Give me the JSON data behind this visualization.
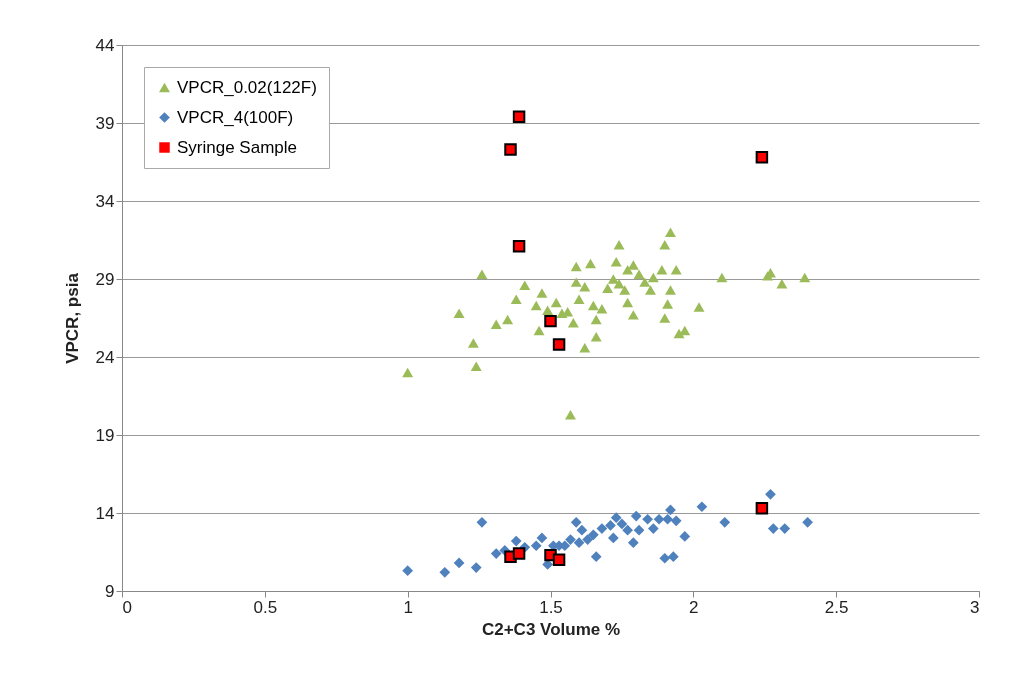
{
  "chart_data": {
    "type": "scatter",
    "xlabel": "C2+C3 Volume %",
    "ylabel": "VPCR, psia",
    "xlim": [
      0,
      3
    ],
    "xticks": [
      0,
      0.5,
      1,
      1.5,
      2,
      2.5,
      3
    ],
    "ylim": [
      9,
      44
    ],
    "yticks": [
      9,
      14,
      19,
      24,
      29,
      34,
      39,
      44
    ],
    "grid": "y",
    "legend": "top left",
    "series": [
      {
        "name": "VPCR_0.02(122F)",
        "color": "#9bbb59",
        "marker": "triangle",
        "x": [
          1.0,
          1.18,
          1.23,
          1.24,
          1.26,
          1.31,
          1.35,
          1.38,
          1.41,
          1.45,
          1.46,
          1.47,
          1.49,
          1.52,
          1.54,
          1.56,
          1.57,
          1.58,
          1.59,
          1.59,
          1.6,
          1.62,
          1.62,
          1.64,
          1.65,
          1.66,
          1.66,
          1.68,
          1.7,
          1.72,
          1.73,
          1.74,
          1.74,
          1.76,
          1.77,
          1.77,
          1.79,
          1.79,
          1.81,
          1.83,
          1.85,
          1.86,
          1.89,
          1.9,
          1.9,
          1.91,
          1.92,
          1.92,
          1.94,
          1.95,
          1.97,
          2.02,
          2.1,
          2.26,
          2.27,
          2.31,
          2.39
        ],
        "values": [
          23.0,
          26.8,
          24.9,
          23.4,
          29.3,
          26.1,
          26.4,
          27.7,
          28.6,
          27.3,
          25.7,
          28.1,
          27.0,
          27.5,
          26.8,
          26.9,
          20.3,
          26.2,
          29.8,
          28.8,
          27.7,
          24.6,
          28.5,
          30.0,
          27.3,
          26.4,
          25.3,
          27.1,
          28.4,
          29.0,
          30.1,
          31.2,
          28.7,
          28.3,
          29.6,
          27.5,
          26.7,
          29.9,
          29.3,
          28.8,
          28.3,
          29.1,
          29.6,
          31.2,
          26.5,
          27.4,
          32.0,
          28.3,
          29.6,
          25.5,
          25.7,
          27.2,
          29.1,
          29.2,
          29.4,
          28.7,
          29.1
        ]
      },
      {
        "name": "VPCR_4(100F)",
        "color": "#4f81bd",
        "marker": "diamond",
        "x": [
          1.0,
          1.13,
          1.18,
          1.24,
          1.26,
          1.31,
          1.34,
          1.38,
          1.41,
          1.45,
          1.47,
          1.49,
          1.51,
          1.53,
          1.55,
          1.57,
          1.59,
          1.6,
          1.61,
          1.63,
          1.65,
          1.66,
          1.68,
          1.71,
          1.72,
          1.73,
          1.75,
          1.77,
          1.79,
          1.8,
          1.81,
          1.84,
          1.86,
          1.88,
          1.9,
          1.91,
          1.92,
          1.93,
          1.94,
          1.97,
          2.03,
          2.11,
          2.27,
          2.28,
          2.32,
          2.4
        ],
        "values": [
          10.3,
          10.2,
          10.8,
          10.5,
          13.4,
          11.4,
          11.6,
          12.2,
          11.8,
          11.9,
          12.4,
          10.7,
          11.9,
          11.9,
          11.9,
          12.3,
          13.4,
          12.1,
          12.9,
          12.3,
          12.6,
          11.2,
          13.0,
          13.2,
          12.4,
          13.7,
          13.3,
          12.9,
          12.1,
          13.8,
          12.9,
          13.6,
          13.0,
          13.6,
          11.1,
          13.6,
          14.2,
          11.2,
          13.5,
          12.5,
          14.4,
          13.4,
          15.2,
          13.0,
          13.0,
          13.4
        ]
      },
      {
        "name": "Syringe Sample",
        "color": "#ff0000",
        "marker": "square",
        "x": [
          1.36,
          1.39,
          1.39,
          1.5,
          1.53,
          2.24,
          1.36,
          1.39,
          1.5,
          1.53,
          2.24
        ],
        "values": [
          37.3,
          39.4,
          31.1,
          26.3,
          24.8,
          36.8,
          11.2,
          11.4,
          11.3,
          11.0,
          14.3
        ]
      }
    ]
  }
}
